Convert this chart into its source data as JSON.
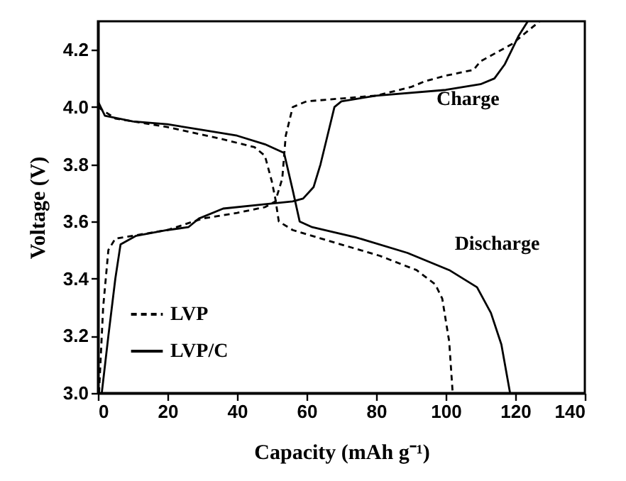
{
  "chart_data": {
    "type": "line",
    "xlabel": "Capacity (mAh g⁻¹)",
    "ylabel": "Voltage (V)",
    "xlim": [
      0,
      140
    ],
    "xticks": [
      0,
      20,
      40,
      60,
      80,
      100,
      120,
      140
    ],
    "ylim": [
      3.0,
      4.3
    ],
    "yticks": [
      {
        "value": 3,
        "label": "3.0"
      },
      3.2,
      3.4,
      3.6,
      3.8,
      {
        "value": 4,
        "label": "4.0"
      },
      4.2
    ],
    "grid": false,
    "legend": "bottom left",
    "marker": "none",
    "annotations": [
      "Charge",
      "Discharge"
    ],
    "series": [
      {
        "name": "LVP",
        "color": "#000000",
        "line_style": "dashed",
        "x": [
          0.3,
          1.5,
          3,
          5,
          10,
          20,
          30,
          40,
          48,
          51,
          53,
          54,
          56,
          60,
          70,
          80,
          90,
          94,
          100,
          108,
          110,
          119,
          122,
          127
        ],
        "values": [
          3.0,
          3.3,
          3.5,
          3.54,
          3.55,
          3.57,
          3.61,
          3.63,
          3.65,
          3.67,
          3.75,
          3.9,
          4.0,
          4.02,
          4.03,
          4.04,
          4.07,
          4.09,
          4.11,
          4.13,
          4.16,
          4.22,
          4.25,
          4.3
        ]
      },
      {
        "color": "#000000",
        "line_style": "dashed",
        "x": [
          0,
          5,
          20,
          35,
          45,
          48,
          50,
          51,
          52,
          56,
          67,
          81,
          91.6,
          97,
          99,
          101,
          102
        ],
        "values": [
          4.0,
          3.96,
          3.93,
          3.89,
          3.86,
          3.83,
          3.74,
          3.68,
          3.6,
          3.57,
          3.53,
          3.48,
          3.43,
          3.38,
          3.33,
          3.18,
          3.0
        ]
      },
      {
        "name": "LVP/C",
        "color": "#000000",
        "line_style": "solid",
        "x": [
          1.1,
          3,
          5,
          6.5,
          11,
          20,
          26,
          29,
          36,
          48,
          56,
          59,
          62,
          64,
          66,
          68,
          70,
          80,
          100,
          110,
          114,
          117,
          119,
          121,
          123.6
        ],
        "values": [
          3.0,
          3.2,
          3.4,
          3.52,
          3.55,
          3.57,
          3.58,
          3.61,
          3.645,
          3.66,
          3.67,
          3.68,
          3.72,
          3.8,
          3.9,
          4.0,
          4.02,
          4.04,
          4.06,
          4.08,
          4.1,
          4.15,
          4.2,
          4.25,
          4.3
        ]
      },
      {
        "color": "#000000",
        "line_style": "solid",
        "x": [
          0,
          2,
          10,
          20,
          30,
          40,
          48,
          53.5,
          56,
          58,
          61.6,
          67,
          74,
          89,
          101,
          109,
          113,
          116,
          118.5
        ],
        "values": [
          4.02,
          3.97,
          3.95,
          3.94,
          3.92,
          3.9,
          3.87,
          3.84,
          3.71,
          3.6,
          3.58,
          3.565,
          3.545,
          3.49,
          3.43,
          3.37,
          3.28,
          3.17,
          3.0
        ]
      }
    ]
  }
}
